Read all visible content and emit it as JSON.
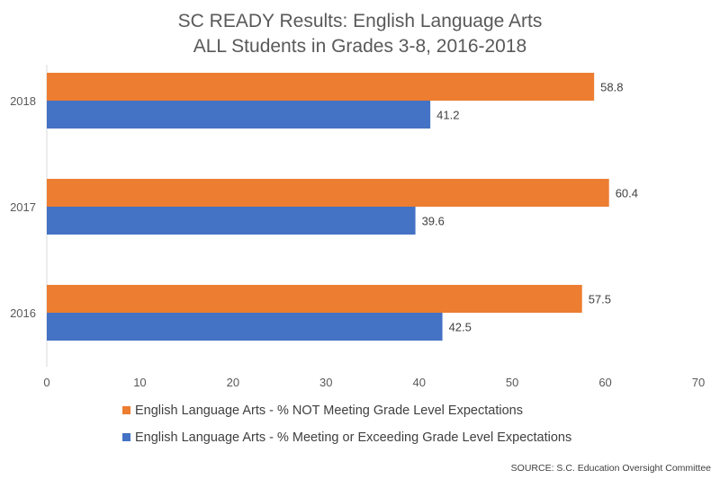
{
  "chart_data": {
    "type": "bar",
    "orientation": "horizontal",
    "title": "SC READY Results: English Language Arts",
    "subtitle": "ALL Students in Grades 3-8, 2016-2018",
    "categories": [
      "2018",
      "2017",
      "2016"
    ],
    "series": [
      {
        "name": "English Language Arts - % NOT Meeting Grade Level Expectations",
        "color": "#ED7D31",
        "values": [
          58.8,
          60.4,
          57.5
        ]
      },
      {
        "name": "English Language Arts - % Meeting or Exceeding Grade Level Expectations",
        "color": "#4472C4",
        "values": [
          41.2,
          39.6,
          42.5
        ]
      }
    ],
    "xlim": [
      0,
      70
    ],
    "xticks": [
      0,
      10,
      20,
      30,
      40,
      50,
      60,
      70
    ],
    "data_labels": true,
    "legend_position": "bottom",
    "grid": false
  },
  "source_note": "SOURCE: S.C. Education Oversight Committee",
  "colors": {
    "axis": "#D9D9D9",
    "text": "#595959"
  }
}
